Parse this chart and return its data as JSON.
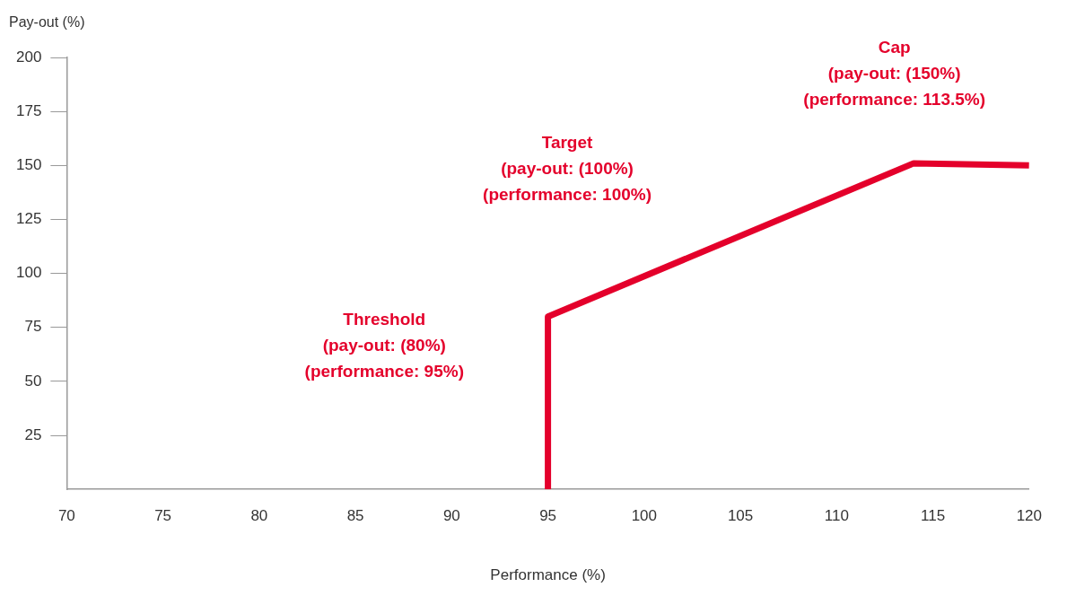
{
  "chart_data": {
    "type": "line",
    "xlabel": "Performance (%)",
    "ylabel": "Pay-out (%)",
    "series": [
      {
        "color": "#e4002b",
        "x": [
          95,
          95,
          114,
          120
        ],
        "values": [
          0,
          80,
          151,
          150
        ]
      }
    ],
    "xlim": [
      70,
      120
    ],
    "xticks": [
      70,
      75,
      80,
      85,
      90,
      95,
      100,
      105,
      110,
      115,
      120
    ],
    "ylim": [
      0,
      200
    ],
    "yticks": [
      25,
      50,
      75,
      100,
      125,
      150,
      175,
      200
    ],
    "grid": false,
    "legend": false,
    "marker": "none",
    "line_style": "solid",
    "annotations": [
      "Threshold\n(pay-out: (80%)\n(performance: 95%)",
      "Target\n(pay-out: (100%)\n(performance: 100%)",
      "Cap\n(pay-out: (150%)\n(performance: 113.5%)"
    ]
  }
}
